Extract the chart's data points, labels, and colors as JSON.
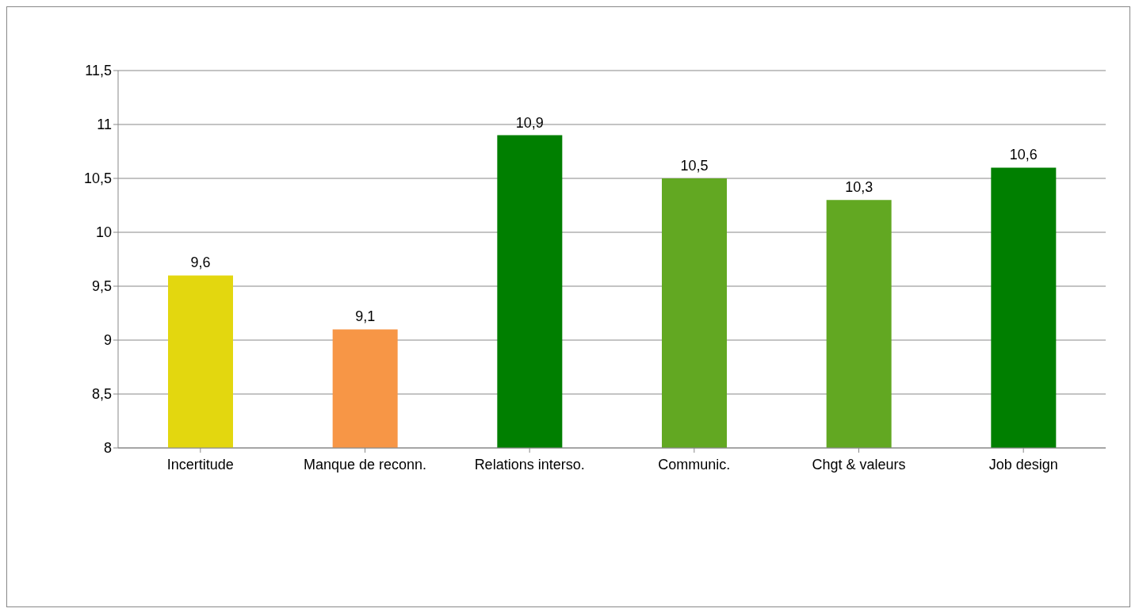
{
  "chart_data": {
    "type": "bar",
    "categories": [
      "Incertitude",
      "Manque de reconn.",
      "Relations interso.",
      "Communic.",
      "Chgt & valeurs",
      "Job design"
    ],
    "values": [
      9.6,
      9.1,
      10.9,
      10.5,
      10.3,
      10.6
    ],
    "colors": [
      "#e3d70f",
      "#f79646",
      "#007f00",
      "#62a822",
      "#62a822",
      "#007f00"
    ],
    "value_labels": [
      "9,6",
      "9,1",
      "10,9",
      "10,5",
      "10,3",
      "10,6"
    ],
    "ylim": [
      8,
      11.5
    ],
    "yticks": [
      8,
      {
        "value": 8.5,
        "label": "8,5"
      },
      9,
      {
        "value": 9.5,
        "label": "9,5"
      },
      10,
      {
        "value": 10.5,
        "label": "10,5"
      },
      11,
      {
        "value": 11.5,
        "label": "11,5"
      }
    ],
    "grid": "y",
    "legend": false
  }
}
